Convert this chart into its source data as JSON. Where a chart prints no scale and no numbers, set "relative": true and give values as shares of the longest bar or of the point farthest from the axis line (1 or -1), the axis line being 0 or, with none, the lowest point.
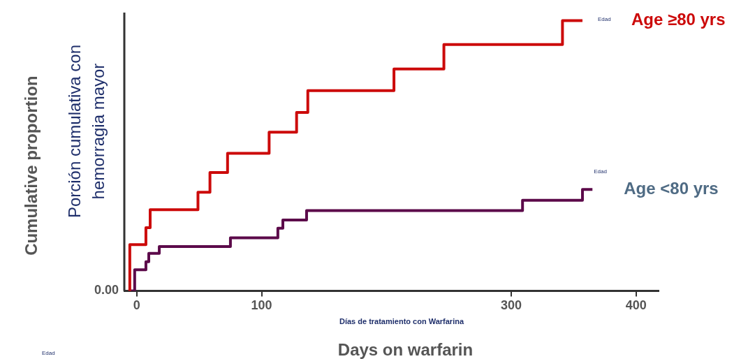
{
  "chart_data": {
    "type": "step",
    "relative": true,
    "ylabel": "Porción cumulativa con hemorragia mayor",
    "xlabel": "Days on warfarin",
    "xlim": [
      -10,
      418
    ],
    "xticks": [
      0,
      100,
      300,
      400
    ],
    "grid": false,
    "legend": false,
    "marker": "none",
    "line_style": "solid",
    "annotations": [
      "Cumulative proportion",
      "Días de tratamiento con Warfarina",
      "Edad",
      "Edad",
      "Edad",
      "0.00"
    ],
    "series": [
      {
        "name": "Age ≥80 yrs",
        "color": "#cc0a0a",
        "x": [
          -6.8,
          -5.6,
          7.3,
          10.7,
          49,
          58.6,
          72.7,
          106,
          128,
          137,
          206,
          246,
          341,
          357
        ],
        "values": [
          0,
          0.171,
          0.234,
          0.3,
          0.365,
          0.438,
          0.509,
          0.587,
          0.66,
          0.741,
          0.821,
          0.912,
          1,
          1
        ]
      },
      {
        "name": "Age <80 yrs",
        "color": "#5c0a4a",
        "x": [
          -5.6,
          -1.7,
          7.3,
          9.6,
          18,
          75,
          113,
          117,
          136,
          309,
          357,
          365
        ],
        "values": [
          0,
          0.078,
          0.108,
          0.139,
          0.164,
          0.196,
          0.232,
          0.262,
          0.297,
          0.335,
          0.375,
          0.375
        ]
      }
    ]
  }
}
